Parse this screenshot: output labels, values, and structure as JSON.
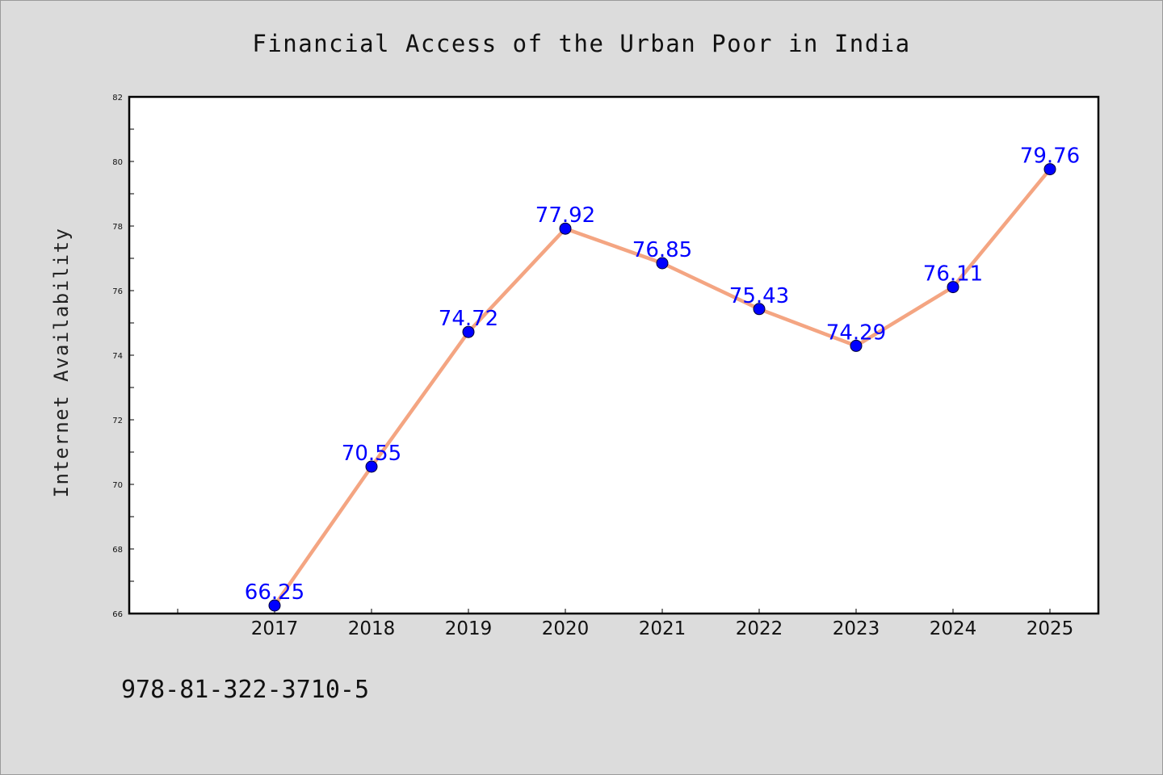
{
  "chart_data": {
    "type": "line",
    "title": "Financial Access of the Urban Poor in India",
    "xlabel": "",
    "ylabel": "Internet Availability",
    "categories": [
      "2017",
      "2018",
      "2019",
      "2020",
      "2021",
      "2022",
      "2023",
      "2024",
      "2025"
    ],
    "series": [
      {
        "values": [
          66.25,
          70.55,
          74.72,
          77.92,
          76.85,
          75.43,
          74.29,
          76.11,
          79.76
        ],
        "data_labels": [
          "66.25",
          "70.55",
          "74.72",
          "77.92",
          "76.85",
          "75.43",
          "74.29",
          "76.11",
          "79.76"
        ],
        "line_color": "#f4a582",
        "marker_color": "#0000ff",
        "label_color": "#0000ff"
      }
    ],
    "ylim": [
      66,
      82
    ],
    "yticks": [
      "66",
      "68",
      "70",
      "72",
      "74",
      "76",
      "78",
      "80",
      "82"
    ],
    "grid": false,
    "legend": "none"
  },
  "footnote": "978-81-322-3710-5",
  "colors": {
    "background": "#dcdcdc",
    "plot_background": "#ffffff",
    "axis": "#000000"
  }
}
